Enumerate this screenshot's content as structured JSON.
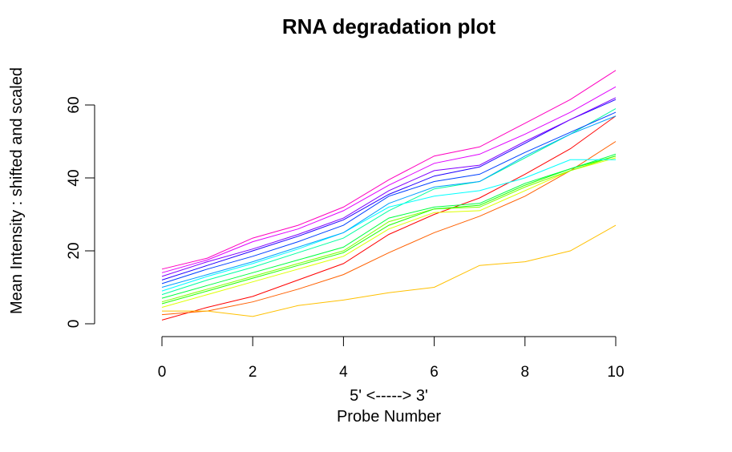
{
  "chart_data": {
    "type": "line",
    "title": "RNA degradation plot",
    "xlabel_line1": "5' <-----> 3'",
    "xlabel_line2": "Probe Number",
    "ylabel": "Mean Intensity : shifted and scaled",
    "xlim": [
      0,
      10
    ],
    "ylim": [
      0,
      60
    ],
    "x_ticks": [
      0,
      2,
      4,
      6,
      8,
      10
    ],
    "y_ticks": [
      0,
      20,
      40,
      60
    ],
    "grid": false,
    "legend": "none",
    "x": [
      0,
      1,
      2,
      3,
      4,
      5,
      6,
      7,
      8,
      9,
      10
    ],
    "series": [
      {
        "color": "#ff0000",
        "values": [
          1,
          4.5,
          7.5,
          12,
          16.5,
          24.5,
          30,
          34.5,
          41,
          48,
          57
        ]
      },
      {
        "color": "#ff6000",
        "values": [
          2.5,
          3.5,
          6,
          9.5,
          13.5,
          19.5,
          25,
          29.5,
          35,
          42,
          50
        ]
      },
      {
        "color": "#ffc000",
        "values": [
          3.5,
          3.5,
          2,
          5,
          6.5,
          8.5,
          10,
          16,
          17,
          20,
          27
        ]
      },
      {
        "color": "#dfff00",
        "values": [
          4.5,
          8,
          11.5,
          15,
          18.5,
          26,
          30.5,
          31,
          36.5,
          42,
          45.5
        ]
      },
      {
        "color": "#80ff00",
        "values": [
          6,
          9.5,
          13,
          16.5,
          20,
          28,
          31.5,
          32,
          37.5,
          42,
          46
        ]
      },
      {
        "color": "#20ff00",
        "values": [
          5.5,
          9,
          12.5,
          16,
          19.5,
          27,
          31.5,
          32.5,
          38,
          42.5,
          46
        ]
      },
      {
        "color": "#00ff40",
        "values": [
          7,
          10.5,
          14,
          17.5,
          21,
          29,
          32,
          33,
          38.5,
          42.5,
          46.5
        ]
      },
      {
        "color": "#00ffa0",
        "values": [
          8,
          12,
          15.5,
          19.5,
          23.5,
          31,
          37,
          39,
          45.5,
          52,
          59
        ]
      },
      {
        "color": "#00ffff",
        "values": [
          9,
          13,
          16.5,
          20.5,
          25,
          32,
          35,
          36.5,
          40,
          45,
          45
        ]
      },
      {
        "color": "#00a0ff",
        "values": [
          10,
          13.5,
          17,
          21,
          25,
          33,
          37.5,
          39,
          46,
          52,
          57
        ]
      },
      {
        "color": "#0040ff",
        "values": [
          11,
          15,
          18.5,
          22.5,
          27,
          35,
          39,
          41,
          47,
          52.5,
          58
        ]
      },
      {
        "color": "#2000ff",
        "values": [
          12,
          16,
          20,
          24,
          28.5,
          35.5,
          40.5,
          43,
          49.5,
          56,
          61.5
        ]
      },
      {
        "color": "#8000ff",
        "values": [
          13,
          17,
          20.5,
          24.5,
          29,
          36.5,
          42,
          43.5,
          50,
          56,
          62
        ]
      },
      {
        "color": "#df00ff",
        "values": [
          14,
          17.5,
          22.5,
          26,
          31,
          38,
          44,
          46.5,
          52,
          58,
          65
        ]
      },
      {
        "color": "#ff00c0",
        "values": [
          15,
          18,
          23.5,
          27,
          32,
          39.5,
          46,
          48.5,
          55,
          61.5,
          69.5
        ]
      }
    ]
  }
}
